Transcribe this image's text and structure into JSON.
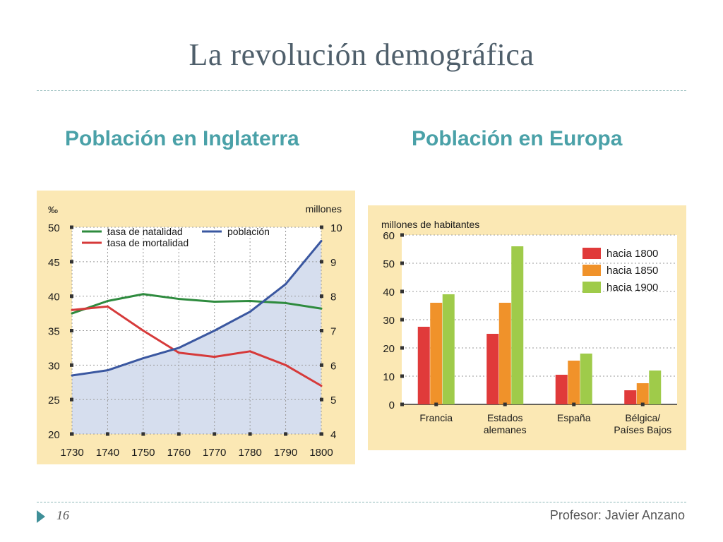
{
  "title": "La revolución demográfica",
  "left_subtitle": "Población en Inglaterra",
  "right_subtitle": "Población en Europa",
  "footer": {
    "slide_number": "16",
    "author": "Profesor: Javier Anzano"
  },
  "colors": {
    "accent": "#4aa1a8",
    "title": "#4f5f6b",
    "panel": "#fbe8b4"
  },
  "chart_data": [
    {
      "type": "line",
      "x": [
        1730,
        1740,
        1750,
        1760,
        1770,
        1780,
        1790,
        1800
      ],
      "left_axis_label": "‰",
      "right_axis_label": "millones",
      "ylim_left": [
        20,
        50
      ],
      "ylim_right": [
        4,
        10
      ],
      "left_ticks": [
        20,
        25,
        30,
        35,
        40,
        45,
        50
      ],
      "right_ticks": [
        4,
        5,
        6,
        7,
        8,
        9,
        10
      ],
      "grid": true,
      "legend_placement": "top",
      "series": [
        {
          "name": "tasa de natalidad",
          "axis": "left",
          "color": "#2e8b3e",
          "values": [
            37.5,
            39.3,
            40.3,
            39.6,
            39.2,
            39.3,
            39.0,
            38.2
          ]
        },
        {
          "name": "tasa de mortalidad",
          "axis": "left",
          "color": "#d63a3a",
          "values": [
            38.0,
            38.5,
            35.0,
            31.8,
            31.2,
            32.0,
            30.0,
            27.0
          ]
        },
        {
          "name": "población",
          "axis": "right",
          "color": "#3a57a0",
          "fill": "#d6deee",
          "values": [
            5.7,
            5.85,
            6.2,
            6.5,
            7.0,
            7.55,
            8.35,
            9.6
          ]
        }
      ]
    },
    {
      "type": "bar",
      "ylabel": "millones de habitantes",
      "ylim": [
        0,
        60
      ],
      "y_ticks": [
        0,
        10,
        20,
        30,
        40,
        50,
        60
      ],
      "grid": true,
      "legend_placement": "top-right",
      "categories": [
        [
          "Francia"
        ],
        [
          "Estados",
          "alemanes"
        ],
        [
          "España"
        ],
        [
          "Bélgica/",
          "Países Bajos"
        ]
      ],
      "series": [
        {
          "name": "hacia 1800",
          "color": "#e03a3a",
          "values": [
            27.5,
            25,
            10.5,
            5
          ]
        },
        {
          "name": "hacia 1850",
          "color": "#f0922a",
          "values": [
            36,
            36,
            15.5,
            7.5
          ]
        },
        {
          "name": "hacia 1900",
          "color": "#9fcb4a",
          "values": [
            39,
            56,
            18,
            12
          ]
        }
      ]
    }
  ]
}
